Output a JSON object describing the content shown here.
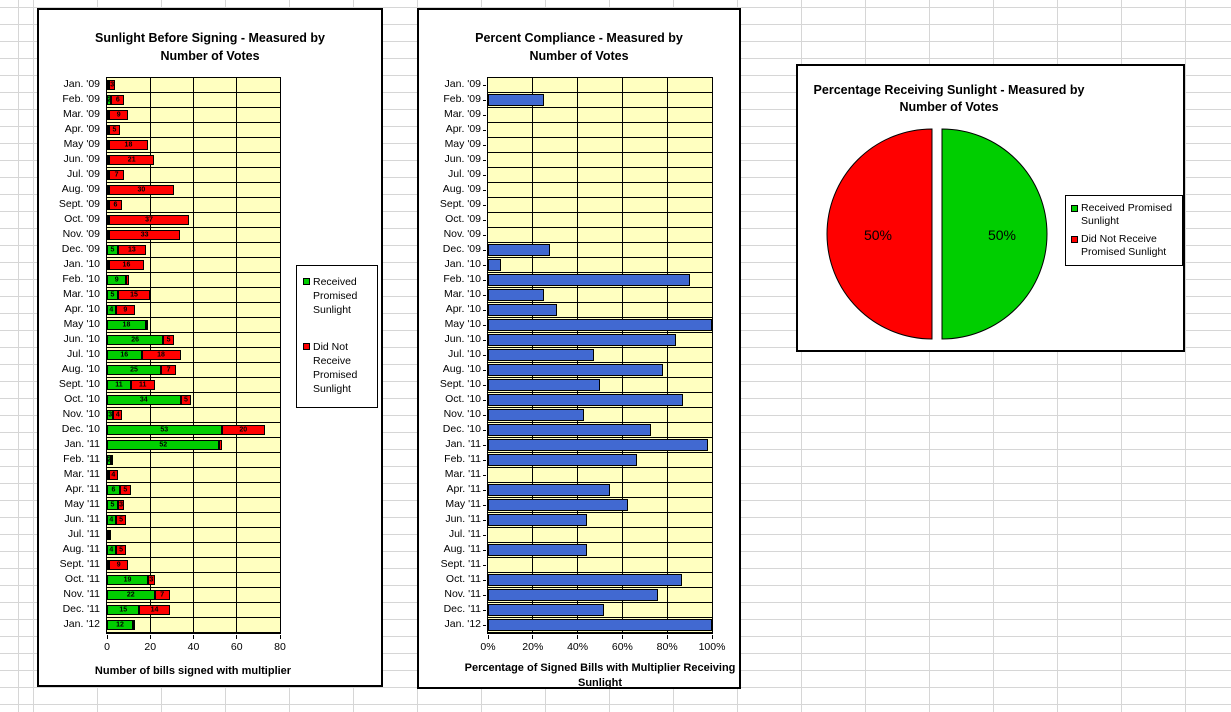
{
  "chart_data": [
    {
      "type": "bar",
      "orientation": "horizontal",
      "stacked": true,
      "title": "Sunlight Before Signing - Measured by Number of Votes",
      "title_lines": [
        "Sunlight Before Signing - Measured by",
        "Number of Votes"
      ],
      "xlabel": "Number of bills signed with multiplier",
      "xlim": [
        0,
        80
      ],
      "xticks": [
        0,
        20,
        40,
        60,
        80
      ],
      "xtick_labels": [
        "0",
        "20",
        "40",
        "60",
        "80"
      ],
      "plot_bg": "#FFFFC0",
      "grid": true,
      "legend_position": "right",
      "categories": [
        "Jan. '09",
        "Feb. '09",
        "Mar. '09",
        "Apr. '09",
        "May '09",
        "Jun. '09",
        "Jul. '09",
        "Aug. '09",
        "Sept. '09",
        "Oct. '09",
        "Nov. '09",
        "Dec. '09",
        "Jan. '10",
        "Feb. '10",
        "Mar. '10",
        "Apr. '10",
        "May '10",
        "Jun. '10",
        "Jul. '10",
        "Aug. '10",
        "Sept. '10",
        "Oct. '10",
        "Nov. '10",
        "Dec. '10",
        "Jan. '11",
        "Feb. '11",
        "Mar. '11",
        "Apr. '11",
        "May '11",
        "Jun. '11",
        "Jul. '11",
        "Aug. '11",
        "Sept. '11",
        "Oct. '11",
        "Nov. '11",
        "Dec. '11",
        "Jan. '12"
      ],
      "series": [
        {
          "name": "Received Promised Sunlight",
          "color": "#00CE00",
          "values": [
            0,
            2,
            0,
            0,
            0,
            0,
            0,
            0,
            0,
            0,
            0,
            5,
            1,
            9,
            5,
            4,
            18,
            26,
            16,
            25,
            11,
            34,
            3,
            53,
            52,
            2,
            0,
            6,
            5,
            4,
            0,
            4,
            0,
            19,
            22,
            15,
            12
          ]
        },
        {
          "name": "Did Not Receive Promised Sunlight",
          "color": "#FF0000",
          "values": [
            3,
            6,
            9,
            5,
            18,
            21,
            7,
            30,
            6,
            37,
            33,
            13,
            16,
            1,
            15,
            9,
            0,
            5,
            18,
            7,
            11,
            5,
            4,
            20,
            1,
            1,
            4,
            5,
            3,
            5,
            1,
            5,
            9,
            3,
            7,
            14,
            0
          ]
        }
      ]
    },
    {
      "type": "bar",
      "orientation": "horizontal",
      "title": "Percent Compliance - Measured by Number of Votes",
      "title_lines": [
        "Percent Compliance - Measured by",
        "Number of Votes"
      ],
      "xlabel": "Percentage of Signed Bills with Multiplier Receiving Sunlight",
      "xlim": [
        0,
        100
      ],
      "xticks": [
        0,
        20,
        40,
        60,
        80,
        100
      ],
      "xtick_labels": [
        "0%",
        "20%",
        "40%",
        "60%",
        "80%",
        "100%"
      ],
      "plot_bg": "#FFFFC0",
      "grid": true,
      "bar_color": "#4169D1",
      "categories": [
        "Jan. '09",
        "Feb. '09",
        "Mar. '09",
        "Apr. '09",
        "May '09",
        "Jun. '09",
        "Jul. '09",
        "Aug. '09",
        "Sept. '09",
        "Oct. '09",
        "Nov. '09",
        "Dec. '09",
        "Jan. '10",
        "Feb. '10",
        "Mar. '10",
        "Apr. '10",
        "May '10",
        "Jun. '10",
        "Jul. '10",
        "Aug. '10",
        "Sept. '10",
        "Oct. '10",
        "Nov. '10",
        "Dec. '10",
        "Jan. '11",
        "Feb. '11",
        "Mar. '11",
        "Apr. '11",
        "May '11",
        "Jun. '11",
        "Jul. '11",
        "Aug. '11",
        "Sept. '11",
        "Oct. '11",
        "Nov. '11",
        "Dec. '11",
        "Jan. '12"
      ],
      "values": [
        0,
        25,
        0,
        0,
        0,
        0,
        0,
        0,
        0,
        0,
        0,
        27.8,
        5.9,
        90,
        25,
        30.8,
        100,
        83.9,
        47.1,
        78.1,
        50,
        87.2,
        42.9,
        72.6,
        98.1,
        66.7,
        0,
        54.5,
        62.5,
        44.4,
        0,
        44.4,
        0,
        86.4,
        75.9,
        51.7,
        100
      ]
    },
    {
      "type": "pie",
      "title": "Percentage Receiving Sunlight - Measured by Number of Votes",
      "title_lines": [
        "Percentage Receiving Sunlight - Measured by",
        "Number of Votes"
      ],
      "labels": [
        "Received Promised Sunlight",
        "Did Not Receive Promised Sunlight"
      ],
      "values": [
        50,
        50
      ],
      "value_labels": [
        "50%",
        "50%"
      ],
      "colors": [
        "#00CE00",
        "#FF0000"
      ],
      "legend_position": "right"
    }
  ]
}
